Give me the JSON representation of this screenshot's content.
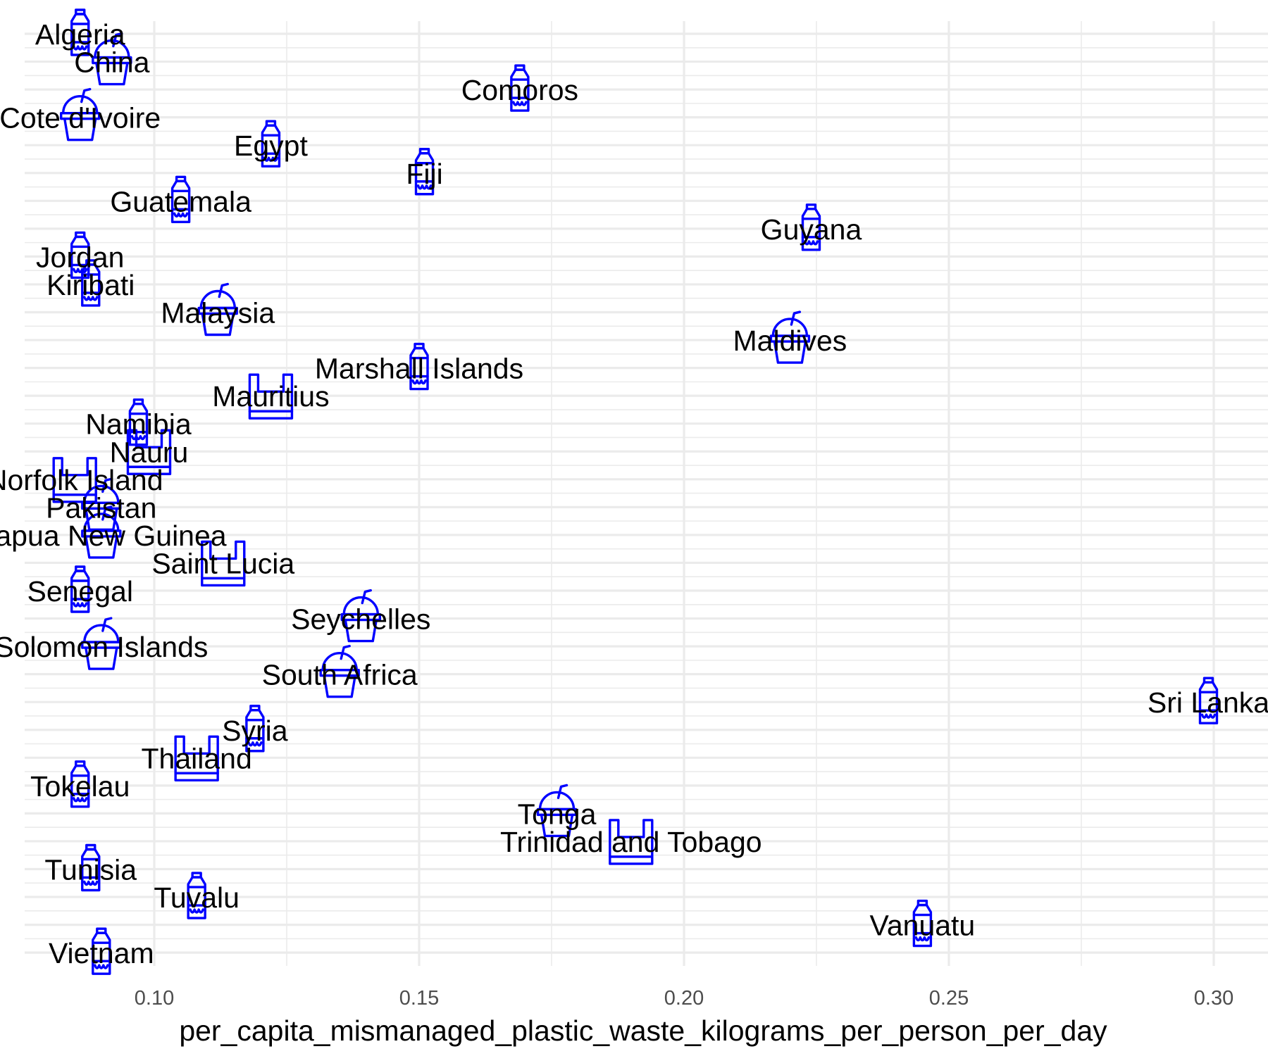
{
  "chart_data": {
    "type": "scatter",
    "xlabel": "per_capita_mismanaged_plastic_waste_kilograms_per_person_per_day",
    "ylabel": "",
    "xlim": [
      0.075,
      0.31
    ],
    "x_ticks": [
      "0.10",
      "0.15",
      "0.20",
      "0.25",
      "0.30"
    ],
    "x_tick_values": [
      0.1,
      0.15,
      0.2,
      0.25,
      0.3
    ],
    "grid": true,
    "marker_color": "#0000ff",
    "points": [
      {
        "label": "Algeria",
        "x": 0.086,
        "icon": "bottle-icon"
      },
      {
        "label": "China",
        "x": 0.092,
        "icon": "cup-icon"
      },
      {
        "label": "Comoros",
        "x": 0.169,
        "icon": "bottle-icon"
      },
      {
        "label": "Cote d'Ivoire",
        "x": 0.086,
        "icon": "cup-icon"
      },
      {
        "label": "Egypt",
        "x": 0.122,
        "icon": "bottle-icon"
      },
      {
        "label": "Fiji",
        "x": 0.151,
        "icon": "bottle-icon"
      },
      {
        "label": "Guatemala",
        "x": 0.105,
        "icon": "bottle-icon"
      },
      {
        "label": "Guyana",
        "x": 0.224,
        "icon": "bottle-icon"
      },
      {
        "label": "Jordan",
        "x": 0.086,
        "icon": "bottle-icon"
      },
      {
        "label": "Kiribati",
        "x": 0.088,
        "icon": "bottle-icon"
      },
      {
        "label": "Malaysia",
        "x": 0.112,
        "icon": "cup-icon"
      },
      {
        "label": "Maldives",
        "x": 0.22,
        "icon": "cup-icon"
      },
      {
        "label": "Marshall Islands",
        "x": 0.15,
        "icon": "bottle-icon"
      },
      {
        "label": "Mauritius",
        "x": 0.122,
        "icon": "bag-icon"
      },
      {
        "label": "Namibia",
        "x": 0.097,
        "icon": "bottle-icon"
      },
      {
        "label": "Nauru",
        "x": 0.099,
        "icon": "bag-icon"
      },
      {
        "label": "Norfolk Island",
        "x": 0.085,
        "icon": "bag-icon"
      },
      {
        "label": "Pakistan",
        "x": 0.09,
        "icon": "cup-icon"
      },
      {
        "label": "Papua New Guinea",
        "x": 0.09,
        "icon": "cup-icon"
      },
      {
        "label": "Saint Lucia",
        "x": 0.113,
        "icon": "bag-icon"
      },
      {
        "label": "Senegal",
        "x": 0.086,
        "icon": "bottle-icon"
      },
      {
        "label": "Seychelles",
        "x": 0.139,
        "icon": "cup-icon"
      },
      {
        "label": "Solomon Islands",
        "x": 0.09,
        "icon": "cup-icon"
      },
      {
        "label": "South Africa",
        "x": 0.135,
        "icon": "cup-icon"
      },
      {
        "label": "Sri Lanka",
        "x": 0.299,
        "icon": "bottle-icon"
      },
      {
        "label": "Syria",
        "x": 0.119,
        "icon": "bottle-icon"
      },
      {
        "label": "Thailand",
        "x": 0.108,
        "icon": "bag-icon"
      },
      {
        "label": "Tokelau",
        "x": 0.086,
        "icon": "bottle-icon"
      },
      {
        "label": "Tonga",
        "x": 0.176,
        "icon": "cup-icon"
      },
      {
        "label": "Trinidad and Tobago",
        "x": 0.19,
        "icon": "bag-icon"
      },
      {
        "label": "Tunisia",
        "x": 0.088,
        "icon": "bottle-icon"
      },
      {
        "label": "Tuvalu",
        "x": 0.108,
        "icon": "bottle-icon"
      },
      {
        "label": "Vanuatu",
        "x": 0.245,
        "icon": "bottle-icon"
      },
      {
        "label": "Vietnam",
        "x": 0.09,
        "icon": "bottle-icon"
      }
    ]
  }
}
